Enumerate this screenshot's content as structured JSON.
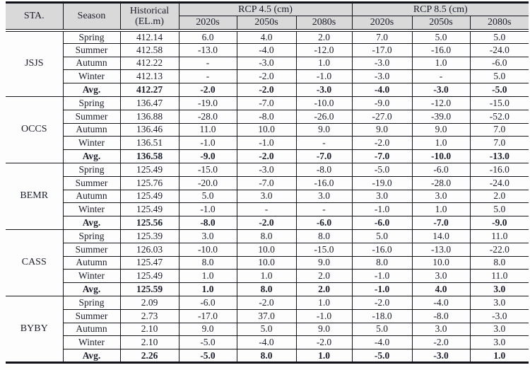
{
  "colors": {
    "header_background": "#d9d9d9",
    "border": "#14141c",
    "text": "#1b1e2b"
  },
  "table": {
    "header": {
      "sta_label": "STA.",
      "season_label": "Season",
      "historical_label_line1": "Historical",
      "historical_label_line2": "(EL.m)",
      "rcp45_label": "RCP 4.5 (cm)",
      "rcp85_label": "RCP 8.5 (cm)",
      "period_labels": [
        "2020s",
        "2050s",
        "2080s",
        "2020s",
        "2050s",
        "2080s"
      ]
    },
    "stations": [
      {
        "name": "JSJS",
        "rows": [
          {
            "season": "Spring",
            "historical": "412.14",
            "rcp45": [
              "6.0",
              "4.0",
              "2.0"
            ],
            "rcp85": [
              "7.0",
              "5.0",
              "5.0"
            ],
            "bold": false
          },
          {
            "season": "Summer",
            "historical": "412.58",
            "rcp45": [
              "-13.0",
              "-4.0",
              "-12.0"
            ],
            "rcp85": [
              "-17.0",
              "-16.0",
              "-24.0"
            ],
            "bold": false
          },
          {
            "season": "Autumn",
            "historical": "412.22",
            "rcp45": [
              "-",
              "-3.0",
              "1.0"
            ],
            "rcp85": [
              "-3.0",
              "1.0",
              "-6.0"
            ],
            "bold": false
          },
          {
            "season": "Winter",
            "historical": "412.13",
            "rcp45": [
              "-",
              "-2.0",
              "-1.0"
            ],
            "rcp85": [
              "-3.0",
              "-",
              "5.0"
            ],
            "bold": false
          },
          {
            "season": "Avg.",
            "historical": "412.27",
            "rcp45": [
              "-2.0",
              "-2.0",
              "-3.0"
            ],
            "rcp85": [
              "-4.0",
              "-3.0",
              "-5.0"
            ],
            "bold": true
          }
        ]
      },
      {
        "name": "OCCS",
        "rows": [
          {
            "season": "Spring",
            "historical": "136.47",
            "rcp45": [
              "-19.0",
              "-7.0",
              "-10.0"
            ],
            "rcp85": [
              "-9.0",
              "-12.0",
              "-15.0"
            ],
            "bold": false
          },
          {
            "season": "Summer",
            "historical": "136.88",
            "rcp45": [
              "-28.0",
              "-8.0",
              "-26.0"
            ],
            "rcp85": [
              "-27.0",
              "-39.0",
              "-52.0"
            ],
            "bold": false
          },
          {
            "season": "Autumn",
            "historical": "136.46",
            "rcp45": [
              "11.0",
              "10.0",
              "9.0"
            ],
            "rcp85": [
              "9.0",
              "9.0",
              "7.0"
            ],
            "bold": false
          },
          {
            "season": "Winter",
            "historical": "136.51",
            "rcp45": [
              "-1.0",
              "-1.0",
              "-"
            ],
            "rcp85": [
              "-2.0",
              "1.0",
              "7.0"
            ],
            "bold": false
          },
          {
            "season": "Avg.",
            "historical": "136.58",
            "rcp45": [
              "-9.0",
              "-2.0",
              "-7.0"
            ],
            "rcp85": [
              "-7.0",
              "-10.0",
              "-13.0"
            ],
            "bold": true
          }
        ]
      },
      {
        "name": "BEMR",
        "rows": [
          {
            "season": "Spring",
            "historical": "125.49",
            "rcp45": [
              "-15.0",
              "-3.0",
              "-8.0"
            ],
            "rcp85": [
              "-5.0",
              "-6.0",
              "-16.0"
            ],
            "bold": false
          },
          {
            "season": "Summer",
            "historical": "125.76",
            "rcp45": [
              "-20.0",
              "-7.0",
              "-16.0"
            ],
            "rcp85": [
              "-19.0",
              "-28.0",
              "-24.0"
            ],
            "bold": false
          },
          {
            "season": "Autumn",
            "historical": "125.49",
            "rcp45": [
              "5.0",
              "3.0",
              "3.0"
            ],
            "rcp85": [
              "3.0",
              "3.0",
              "2.0"
            ],
            "bold": false
          },
          {
            "season": "Winter",
            "historical": "125.49",
            "rcp45": [
              "-1.0",
              "-",
              "-"
            ],
            "rcp85": [
              "-1.0",
              "1.0",
              "5.0"
            ],
            "bold": false
          },
          {
            "season": "Avg.",
            "historical": "125.56",
            "rcp45": [
              "-8.0",
              "-2.0",
              "-6.0"
            ],
            "rcp85": [
              "-6.0",
              "-7.0",
              "-9.0"
            ],
            "bold": true
          }
        ]
      },
      {
        "name": "CASS",
        "rows": [
          {
            "season": "Spring",
            "historical": "125.39",
            "rcp45": [
              "3.0",
              "8.0",
              "8.0"
            ],
            "rcp85": [
              "5.0",
              "14.0",
              "11.0"
            ],
            "bold": false
          },
          {
            "season": "Summer",
            "historical": "126.03",
            "rcp45": [
              "-10.0",
              "10.0",
              "-15.0"
            ],
            "rcp85": [
              "-16.0",
              "-13.0",
              "-22.0"
            ],
            "bold": false
          },
          {
            "season": "Autumn",
            "historical": "125.47",
            "rcp45": [
              "8.0",
              "10.0",
              "9.0"
            ],
            "rcp85": [
              "8.0",
              "10.0",
              "8.0"
            ],
            "bold": false
          },
          {
            "season": "Winter",
            "historical": "125.49",
            "rcp45": [
              "1.0",
              "1.0",
              "2.0"
            ],
            "rcp85": [
              "-1.0",
              "3.0",
              "11.0"
            ],
            "bold": false
          },
          {
            "season": "Avg.",
            "historical": "125.59",
            "rcp45": [
              "1.0",
              "8.0",
              "2.0"
            ],
            "rcp85": [
              "-1.0",
              "4.0",
              "3.0"
            ],
            "bold": true
          }
        ]
      },
      {
        "name": "BYBY",
        "rows": [
          {
            "season": "Spring",
            "historical": "2.09",
            "rcp45": [
              "-6.0",
              "-2.0",
              "1.0"
            ],
            "rcp85": [
              "-2.0",
              "-4.0",
              "3.0"
            ],
            "bold": false
          },
          {
            "season": "Summer",
            "historical": "2.73",
            "rcp45": [
              "-17.0",
              "37.0",
              "-1.0"
            ],
            "rcp85": [
              "-18.0",
              "-8.0",
              "-3.0"
            ],
            "bold": false
          },
          {
            "season": "Autumn",
            "historical": "2.10",
            "rcp45": [
              "9.0",
              "5.0",
              "9.0"
            ],
            "rcp85": [
              "5.0",
              "3.0",
              "3.0"
            ],
            "bold": false
          },
          {
            "season": "Winter",
            "historical": "2.10",
            "rcp45": [
              "-5.0",
              "-4.0",
              "-2.0"
            ],
            "rcp85": [
              "-4.0",
              "-2.0",
              "3.0"
            ],
            "bold": false
          },
          {
            "season": "Avg.",
            "historical": "2.26",
            "rcp45": [
              "-5.0",
              "8.0",
              "1.0"
            ],
            "rcp85": [
              "-5.0",
              "-3.0",
              "1.0"
            ],
            "bold": true
          }
        ]
      }
    ]
  }
}
